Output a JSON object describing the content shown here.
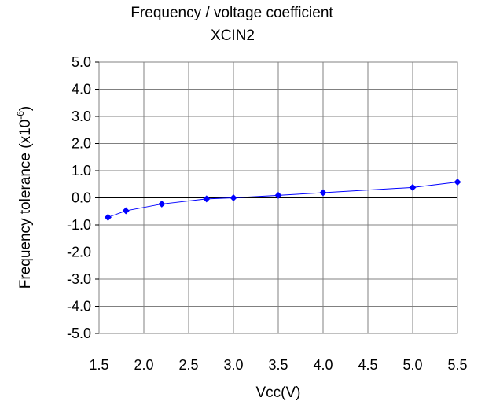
{
  "chart_data": {
    "type": "line",
    "title": "Frequency  / voltage coefficient",
    "subtitle": "XCIN2",
    "xlabel": "Vcc(V)",
    "ylabel_main": "Frequency tolerance  (x10",
    "ylabel_exp": "-6",
    "ylabel_close": ")",
    "xlim": [
      1.5,
      5.5
    ],
    "ylim": [
      -5.0,
      5.0
    ],
    "x_ticks": [
      1.5,
      2.0,
      2.5,
      3.0,
      3.5,
      4.0,
      4.5,
      5.0,
      5.5
    ],
    "y_ticks": [
      5.0,
      4.0,
      3.0,
      2.0,
      1.0,
      0.0,
      -1.0,
      -2.0,
      -3.0,
      -4.0,
      -5.0
    ],
    "x_tick_labels": [
      "1.5",
      "2.0",
      "2.5",
      "3.0",
      "3.5",
      "4.0",
      "4.5",
      "5.0",
      "5.5"
    ],
    "y_tick_labels": [
      "5.0",
      "4.0",
      "3.0",
      "2.0",
      "1.0",
      "0.0",
      "-1.0",
      "-2.0",
      "-3.0",
      "-4.0",
      "-5.0"
    ],
    "grid": true,
    "series": [
      {
        "x": [
          1.6,
          1.8,
          2.2,
          2.7,
          3.0,
          3.5,
          4.0,
          5.0,
          5.5
        ],
        "y": [
          -0.72,
          -0.48,
          -0.23,
          -0.04,
          0.0,
          0.09,
          0.19,
          0.38,
          0.58
        ],
        "color": "#0000ff",
        "marker": "diamond"
      }
    ]
  }
}
